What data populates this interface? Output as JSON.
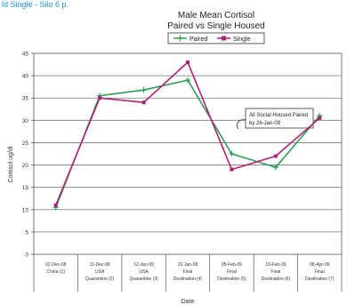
{
  "header_fragment": "ld Single - Silo 6 p.",
  "chart_data": {
    "type": "line",
    "title": "Male Mean Cortisol",
    "subtitle": "Paired vs Single Housed",
    "xlabel": "Date",
    "ylabel": "Cortisol ug/dl",
    "ylim": [
      0,
      45
    ],
    "yticks": [
      0,
      5,
      10,
      15,
      20,
      25,
      30,
      35,
      40,
      45
    ],
    "grid": true,
    "legend_position": "top",
    "categories": [
      {
        "date": "02-Dec-08",
        "line2": "China (1)",
        "line3": ""
      },
      {
        "date": "11-Dec-08",
        "line2": "USA",
        "line3": "Quarantine (2)"
      },
      {
        "date": "12-Jan-09",
        "line2": "USA",
        "line3": "Quarantine (3)"
      },
      {
        "date": "22-Jan-09",
        "line2": "Final",
        "line3": "Destination (4)"
      },
      {
        "date": "05-Feb-09",
        "line2": "Final",
        "line3": "Destination (5)"
      },
      {
        "date": "19-Feb-09",
        "line2": "Final",
        "line3": "Destination (6)"
      },
      {
        "date": "08-Apr-09",
        "line2": "Final",
        "line3": "Destination (7)"
      }
    ],
    "series": [
      {
        "name": "Paired",
        "color": "#2e9e52",
        "values": [
          10.5,
          35.5,
          36.8,
          39,
          22.5,
          19.5,
          31
        ]
      },
      {
        "name": "Single",
        "color": "#b0207a",
        "values": [
          11,
          35,
          34,
          43,
          19,
          22,
          30.5
        ]
      }
    ],
    "annotation": {
      "line1": "All Social Housed Paired",
      "line2": "by 26-Jan-09"
    }
  }
}
